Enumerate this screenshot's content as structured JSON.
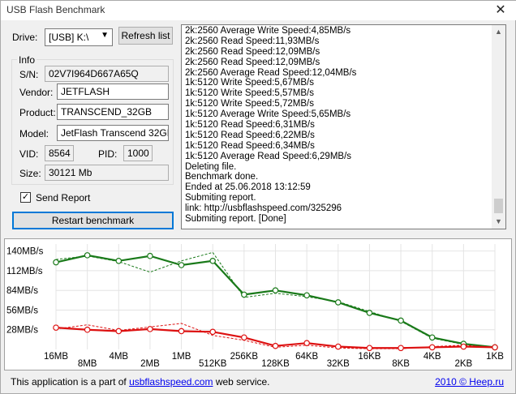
{
  "window": {
    "title": "USB Flash Benchmark",
    "close_glyph": "✕"
  },
  "drive": {
    "label": "Drive:",
    "value": "[USB] K:\\",
    "refresh_label": "Refresh list"
  },
  "info": {
    "title": "Info",
    "sn_label": "S/N:",
    "sn_value": "02V7I964D667A65Q",
    "vendor_label": "Vendor:",
    "vendor_value": "JETFLASH",
    "product_label": "Product:",
    "product_value": "TRANSCEND_32GB",
    "model_label": "Model:",
    "model_value": "JetFlash Transcend 32GB",
    "vid_label": "VID:",
    "vid_value": "8564",
    "pid_label": "PID:",
    "pid_value": "1000",
    "size_label": "Size:",
    "size_value": "30121 Mb"
  },
  "send_report": {
    "label": "Send Report",
    "checked": true,
    "check_glyph": "✓"
  },
  "restart_label": "Restart benchmark",
  "log": {
    "lines": [
      "2k:2560 Average Write Speed:4,85MB/s",
      "2k:2560 Read Speed:11,93MB/s",
      "2k:2560 Read Speed:12,09MB/s",
      "2k:2560 Read Speed:12,09MB/s",
      "2k:2560 Average Read Speed:12,04MB/s",
      "1k:5120 Write Speed:5,67MB/s",
      "1k:5120 Write Speed:5,57MB/s",
      "1k:5120 Write Speed:5,72MB/s",
      "1k:5120 Average Write Speed:5,65MB/s",
      "1k:5120 Read Speed:6,31MB/s",
      "1k:5120 Read Speed:6,22MB/s",
      "1k:5120 Read Speed:6,34MB/s",
      "1k:5120 Average Read Speed:6,29MB/s",
      "Deleting file.",
      "Benchmark done.",
      "Ended at 25.06.2018 13:12:59",
      "Submiting report.",
      "link: http://usbflashspeed.com/325296",
      "Submiting report. [Done]"
    ],
    "scroll_up": "▲",
    "scroll_down": "▼"
  },
  "chart_data": {
    "type": "line",
    "categories": [
      "16MB",
      "8MB",
      "4MB",
      "2MB",
      "1MB",
      "512KB",
      "256KB",
      "128KB",
      "64KB",
      "32KB",
      "16KB",
      "8KB",
      "4KB",
      "2KB",
      "1KB"
    ],
    "ytick_labels": [
      "140MB/s",
      "112MB/s",
      "84MB/s",
      "56MB/s",
      "28MB/s"
    ],
    "ylim": [
      0,
      150
    ],
    "series": [
      {
        "color": "#1a7a1a",
        "values": [
          124,
          134,
          126,
          133,
          120,
          126,
          78,
          84,
          77,
          67,
          52,
          41,
          17,
          8,
          3
        ],
        "avg_values": [
          128,
          133,
          125,
          110,
          126,
          138,
          74,
          80,
          75,
          68,
          54,
          40,
          16,
          7,
          3
        ]
      },
      {
        "color": "#dd1111",
        "values": [
          31,
          28,
          26,
          29,
          26,
          25,
          17,
          5,
          9,
          4,
          2,
          2,
          3,
          4,
          3
        ],
        "avg_values": [
          29,
          35,
          27,
          32,
          37,
          20,
          13,
          3,
          6,
          2,
          1,
          1,
          4,
          6,
          3
        ]
      }
    ]
  },
  "footer": {
    "prefix": "This application is a part of ",
    "link": "usbflashspeed.com",
    "suffix": " web service.",
    "copyright": "2010 © Heep.ru"
  }
}
